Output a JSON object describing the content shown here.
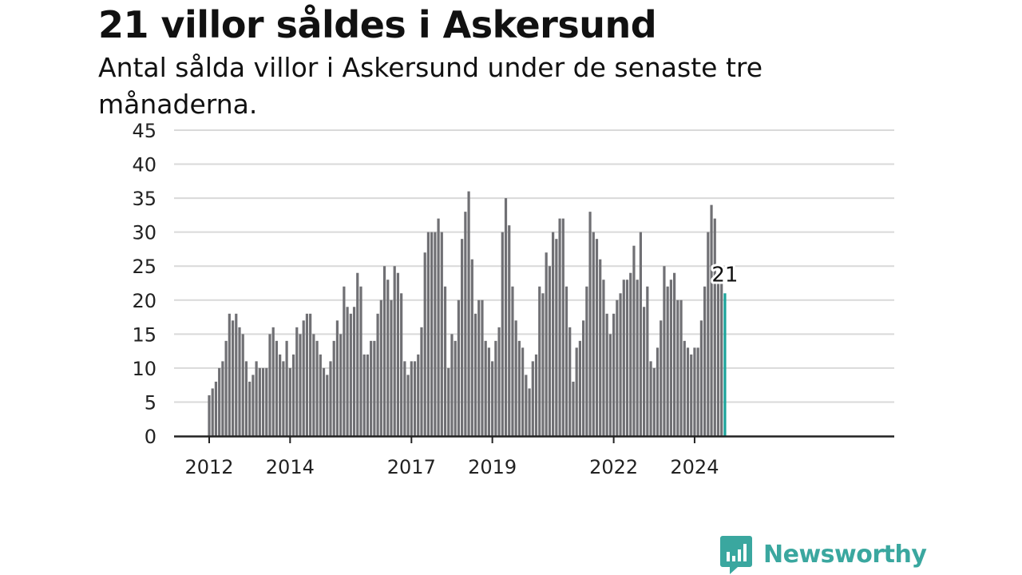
{
  "colors": {
    "bar": "#707074",
    "highlight": "#1aa39a",
    "grid": "#d9d9d9",
    "axis": "#222222",
    "brand": "#3aa79f"
  },
  "brand": {
    "name": "Newsworthy",
    "icon": "newsworthy-bar-chart-icon"
  },
  "chart_data": {
    "type": "bar",
    "title": "21 villor såldes i Askersund",
    "subtitle": "Antal sålda villor i Askersund under de senaste tre månaderna.",
    "xlabel": "",
    "ylabel": "",
    "ylim": [
      0,
      45
    ],
    "yticks": [
      0,
      5,
      10,
      15,
      20,
      25,
      30,
      35,
      40,
      45
    ],
    "xticks": [
      {
        "label": "2012",
        "at": "2012-01"
      },
      {
        "label": "2014",
        "at": "2014-01"
      },
      {
        "label": "2017",
        "at": "2017-01"
      },
      {
        "label": "2019",
        "at": "2019-01"
      },
      {
        "label": "2022",
        "at": "2022-01"
      },
      {
        "label": "2024",
        "at": "2024-01"
      }
    ],
    "grid": true,
    "x": [
      "2012-01",
      "2012-02",
      "2012-03",
      "2012-04",
      "2012-05",
      "2012-06",
      "2012-07",
      "2012-08",
      "2012-09",
      "2012-10",
      "2012-11",
      "2012-12",
      "2013-01",
      "2013-02",
      "2013-03",
      "2013-04",
      "2013-05",
      "2013-06",
      "2013-07",
      "2013-08",
      "2013-09",
      "2013-10",
      "2013-11",
      "2013-12",
      "2014-01",
      "2014-02",
      "2014-03",
      "2014-04",
      "2014-05",
      "2014-06",
      "2014-07",
      "2014-08",
      "2014-09",
      "2014-10",
      "2014-11",
      "2014-12",
      "2015-01",
      "2015-02",
      "2015-03",
      "2015-04",
      "2015-05",
      "2015-06",
      "2015-07",
      "2015-08",
      "2015-09",
      "2015-10",
      "2015-11",
      "2015-12",
      "2016-01",
      "2016-02",
      "2016-03",
      "2016-04",
      "2016-05",
      "2016-06",
      "2016-07",
      "2016-08",
      "2016-09",
      "2016-10",
      "2016-11",
      "2016-12",
      "2017-01",
      "2017-02",
      "2017-03",
      "2017-04",
      "2017-05",
      "2017-06",
      "2017-07",
      "2017-08",
      "2017-09",
      "2017-10",
      "2017-11",
      "2017-12",
      "2018-01",
      "2018-02",
      "2018-03",
      "2018-04",
      "2018-05",
      "2018-06",
      "2018-07",
      "2018-08",
      "2018-09",
      "2018-10",
      "2018-11",
      "2018-12",
      "2019-01",
      "2019-02",
      "2019-03",
      "2019-04",
      "2019-05",
      "2019-06",
      "2019-07",
      "2019-08",
      "2019-09",
      "2019-10",
      "2019-11",
      "2019-12",
      "2020-01",
      "2020-02",
      "2020-03",
      "2020-04",
      "2020-05",
      "2020-06",
      "2020-07",
      "2020-08",
      "2020-09",
      "2020-10",
      "2020-11",
      "2020-12",
      "2021-01",
      "2021-02",
      "2021-03",
      "2021-04",
      "2021-05",
      "2021-06",
      "2021-07",
      "2021-08",
      "2021-09",
      "2021-10",
      "2021-11",
      "2021-12",
      "2022-01",
      "2022-02",
      "2022-03",
      "2022-04",
      "2022-05",
      "2022-06",
      "2022-07",
      "2022-08",
      "2022-09",
      "2022-10",
      "2022-11",
      "2022-12",
      "2023-01",
      "2023-02",
      "2023-03",
      "2023-04",
      "2023-05",
      "2023-06",
      "2023-07",
      "2023-08",
      "2023-09",
      "2023-10",
      "2023-11",
      "2023-12",
      "2024-01",
      "2024-02",
      "2024-03",
      "2024-04",
      "2024-05",
      "2024-06",
      "2024-07",
      "2024-08",
      "2024-09",
      "2024-10"
    ],
    "values": [
      6,
      7,
      8,
      10,
      11,
      14,
      18,
      17,
      18,
      16,
      15,
      11,
      8,
      9,
      11,
      10,
      10,
      10,
      15,
      16,
      14,
      12,
      11,
      14,
      10,
      12,
      16,
      15,
      17,
      18,
      18,
      15,
      14,
      12,
      10,
      9,
      11,
      14,
      17,
      15,
      22,
      19,
      18,
      19,
      24,
      22,
      12,
      12,
      14,
      14,
      18,
      20,
      25,
      23,
      20,
      25,
      24,
      21,
      11,
      9,
      11,
      11,
      12,
      16,
      27,
      30,
      30,
      30,
      32,
      30,
      22,
      10,
      15,
      14,
      20,
      29,
      33,
      36,
      26,
      18,
      20,
      20,
      14,
      13,
      11,
      14,
      16,
      30,
      35,
      31,
      22,
      17,
      14,
      13,
      9,
      7,
      11,
      12,
      22,
      21,
      27,
      25,
      30,
      29,
      32,
      32,
      22,
      16,
      8,
      13,
      14,
      17,
      22,
      33,
      30,
      29,
      26,
      23,
      18,
      15,
      18,
      20,
      21,
      23,
      23,
      24,
      28,
      23,
      30,
      19,
      22,
      11,
      10,
      13,
      17,
      25,
      22,
      23,
      24,
      20,
      20,
      14,
      13,
      12,
      13,
      13,
      17,
      22,
      30,
      34,
      32,
      23,
      23,
      21
    ],
    "highlight_last": true,
    "last_value_label": "21"
  }
}
